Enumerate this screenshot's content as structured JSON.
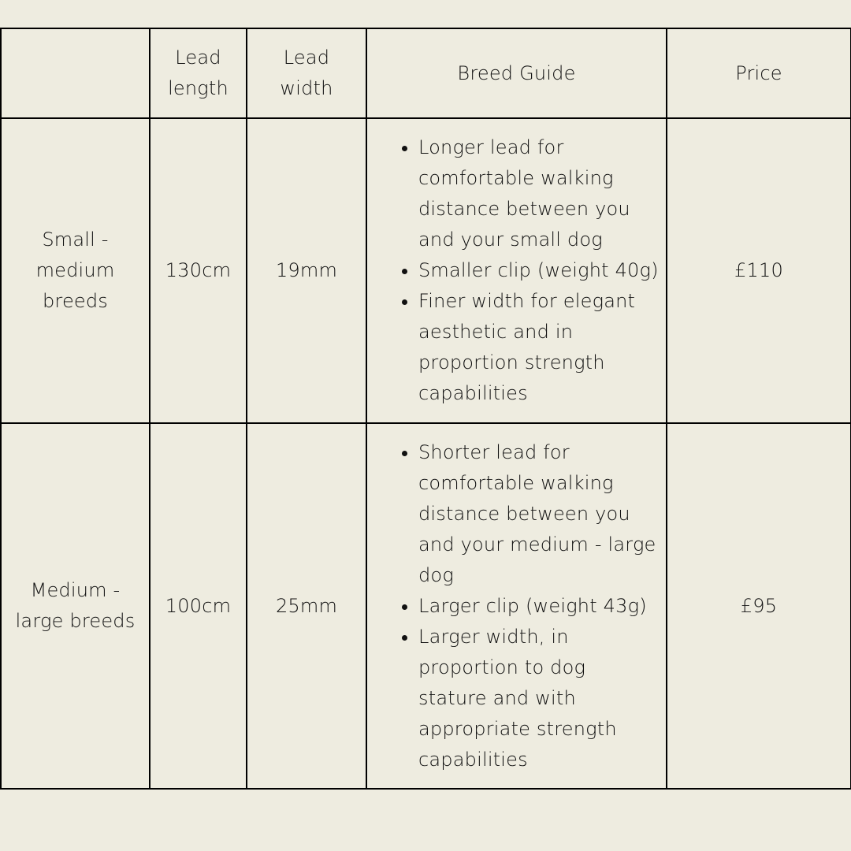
{
  "table": {
    "columns": [
      "Lead length",
      "Lead width",
      "Breed Guide",
      "Price"
    ],
    "rows": [
      {
        "breed": "Small - medium breeds",
        "length": "130cm",
        "width": "19mm",
        "guide": [
          "Longer lead for comfortable walking distance between you and your small dog",
          "Smaller clip (weight 40g)",
          "Finer width for elegant aesthetic  and in proportion strength capabilities"
        ],
        "price": "£110"
      },
      {
        "breed": "Medium - large breeds",
        "length": "100cm",
        "width": "25mm",
        "guide": [
          "Shorter lead for comfortable walking distance between you and your medium - large dog",
          "Larger clip (weight 43g)",
          "Larger width, in proportion to dog stature and with appropriate strength capabilities"
        ],
        "price": "£95"
      }
    ]
  }
}
